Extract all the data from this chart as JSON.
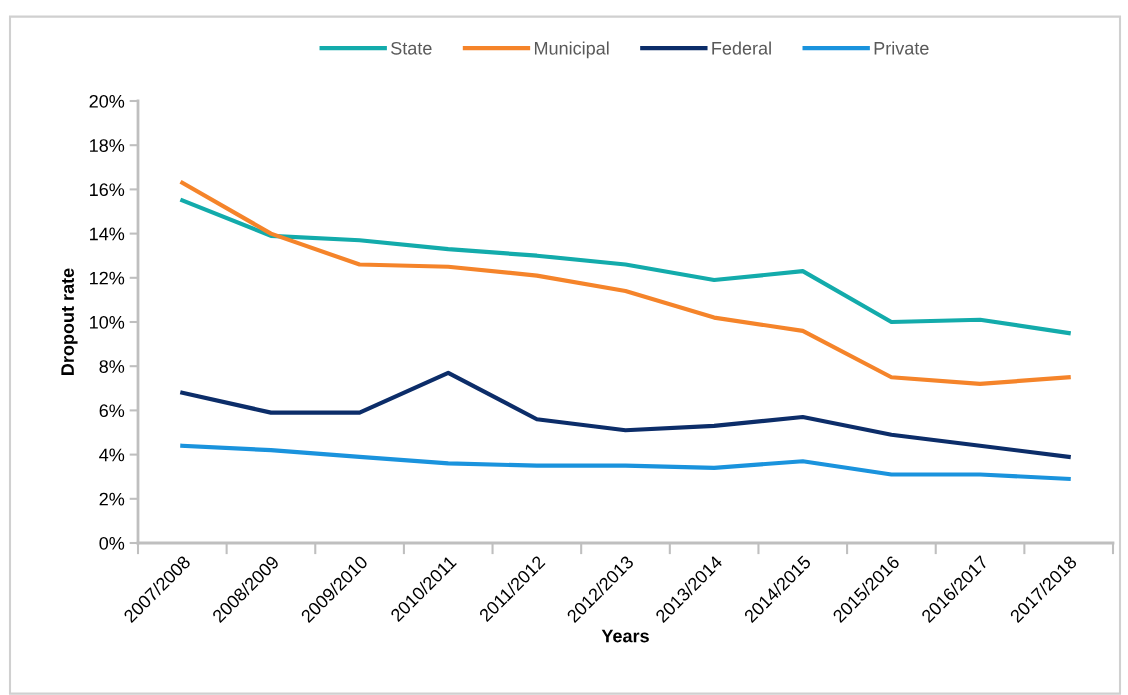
{
  "chart_data": {
    "type": "line",
    "xlabel": "Years",
    "ylabel": "Dropout rate",
    "categories": [
      "2007/2008",
      "2008/2009",
      "2009/2010",
      "2010/2011",
      "2011/2012",
      "2012/2013",
      "2013/2014",
      "2014/2015",
      "2015/2016",
      "2016/2017",
      "2017/2018"
    ],
    "series": [
      {
        "name": "State",
        "color": "#13abab",
        "values": [
          15.5,
          13.9,
          13.7,
          13.3,
          13.0,
          12.6,
          11.9,
          12.3,
          10.0,
          10.1,
          9.5
        ]
      },
      {
        "name": "Municipal",
        "color": "#f5842a",
        "values": [
          16.3,
          14.0,
          12.6,
          12.5,
          12.1,
          11.4,
          10.2,
          9.6,
          7.5,
          7.2,
          7.5
        ]
      },
      {
        "name": "Federal",
        "color": "#0c2d69",
        "values": [
          6.8,
          5.9,
          5.9,
          7.7,
          5.6,
          5.1,
          5.3,
          5.7,
          4.9,
          4.4,
          3.9
        ]
      },
      {
        "name": "Private",
        "color": "#1a93dd",
        "values": [
          4.4,
          4.2,
          3.9,
          3.6,
          3.5,
          3.5,
          3.4,
          3.7,
          3.1,
          3.1,
          2.9
        ]
      }
    ],
    "ylim": [
      0,
      20
    ],
    "yticks": [
      {
        "value": 0,
        "label": "0%"
      },
      {
        "value": 2,
        "label": "2%"
      },
      {
        "value": 4,
        "label": "4%"
      },
      {
        "value": 6,
        "label": "6%"
      },
      {
        "value": 8,
        "label": "8%"
      },
      {
        "value": 10,
        "label": "10%"
      },
      {
        "value": 12,
        "label": "12%"
      },
      {
        "value": 14,
        "label": "14%"
      },
      {
        "value": 16,
        "label": "16%"
      },
      {
        "value": 18,
        "label": "18%"
      },
      {
        "value": 20,
        "label": "20%"
      }
    ],
    "grid": false,
    "legend": "top",
    "marker": "none",
    "line_style": "solid"
  }
}
